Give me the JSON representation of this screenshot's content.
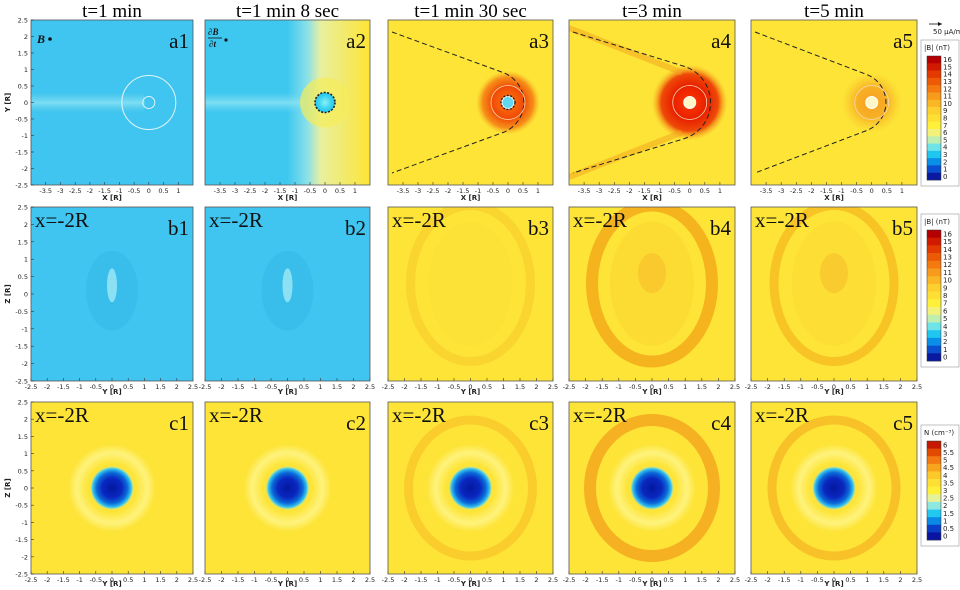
{
  "times": [
    "t=1 min",
    "t=1 min 8 sec",
    "t=1 min 30 sec",
    "t=3 min",
    "t=5 min"
  ],
  "panel_labels": {
    "a": [
      "a1",
      "a2",
      "a3",
      "a4",
      "a5"
    ],
    "b": [
      "b1",
      "b2",
      "b3",
      "b4",
      "b5"
    ],
    "c": [
      "c1",
      "c2",
      "c3",
      "c4",
      "c5"
    ]
  },
  "slice_label": "x=-2R",
  "a1_symbol": "B",
  "a2_symbol_num": "∂B",
  "a2_symbol_den": "∂t",
  "vector_scale": "50 μA/m²",
  "chart_data": [
    {
      "type": "heatmap",
      "row": "a",
      "xlabel": "X [R]",
      "ylabel": "Y [R]",
      "xlim": [
        -4,
        1.5
      ],
      "ylim": [
        -2.5,
        2.5
      ],
      "x_ticks": [
        "-3.5",
        "-3",
        "-2.5",
        "-2",
        "-1.5",
        "-1",
        "-0.5",
        "0",
        "0.5",
        "1"
      ],
      "y_ticks": [
        "2.5",
        "2",
        "1.5",
        "1",
        "0.5",
        "0",
        "-0.5",
        "-1",
        "-1.5",
        "-2",
        "-2.5"
      ],
      "colorbar": {
        "title": "|B| (nT)",
        "ticks": [
          "16",
          "15",
          "14",
          "13",
          "12",
          "11",
          "10",
          "9",
          "8",
          "7",
          "6",
          "5",
          "4",
          "3",
          "2",
          "1",
          "0"
        ],
        "colors": [
          "#b40000",
          "#d21a00",
          "#e23a00",
          "#ec5a05",
          "#f47a10",
          "#f89a1c",
          "#fbb626",
          "#fcd02e",
          "#fde033",
          "#fff03a",
          "#f2f27a",
          "#bfeeb0",
          "#6fe4e8",
          "#1fc6f0",
          "#0a8fe8",
          "#0a4fd0",
          "#0a1aa0"
        ]
      },
      "panels": [
        {
          "time": "t=1 min",
          "background": "light blue",
          "bow_shock": false
        },
        {
          "time": "t=1 min 8 sec",
          "background": "light blue to yellow",
          "bow_shock": false
        },
        {
          "time": "t=1 min 30 sec",
          "background": "yellow",
          "bow_shock": true
        },
        {
          "time": "t=3 min",
          "background": "yellow",
          "bow_shock": true
        },
        {
          "time": "t=5 min",
          "background": "yellow",
          "bow_shock": true
        }
      ]
    },
    {
      "type": "heatmap",
      "row": "b",
      "xlabel": "Y [R]",
      "ylabel": "Z [R]",
      "xlim": [
        -2.5,
        2.5
      ],
      "ylim": [
        -2.5,
        2.5
      ],
      "x_ticks": [
        "-2.5",
        "-2",
        "-1.5",
        "-1",
        "-0.5",
        "0",
        "0.5",
        "1",
        "1.5",
        "2",
        "2.5"
      ],
      "y_ticks": [
        "2.5",
        "2",
        "1.5",
        "1",
        "0.5",
        "0",
        "-0.5",
        "-1",
        "-1.5",
        "-2",
        "-2.5"
      ],
      "colorbar": {
        "title": "|B| (nT)",
        "ticks": [
          "16",
          "15",
          "14",
          "13",
          "12",
          "11",
          "10",
          "9",
          "8",
          "7",
          "6",
          "5",
          "4",
          "3",
          "2",
          "1",
          "0"
        ],
        "colors": [
          "#b40000",
          "#d21a00",
          "#e23a00",
          "#ec5a05",
          "#f47a10",
          "#f89a1c",
          "#fbb626",
          "#fcd02e",
          "#fde033",
          "#fff03a",
          "#f2f27a",
          "#bfeeb0",
          "#6fe4e8",
          "#1fc6f0",
          "#0a8fe8",
          "#0a4fd0",
          "#0a1aa0"
        ]
      }
    },
    {
      "type": "heatmap",
      "row": "c",
      "xlabel": "Y [R]",
      "ylabel": "Z [R]",
      "xlim": [
        -2.5,
        2.5
      ],
      "ylim": [
        -2.5,
        2.5
      ],
      "x_ticks": [
        "-2.5",
        "-2",
        "-1.5",
        "-1",
        "-0.5",
        "0",
        "0.5",
        "1",
        "1.5",
        "2",
        "2.5"
      ],
      "y_ticks": [
        "2.5",
        "2",
        "1.5",
        "1",
        "0.5",
        "0",
        "-0.5",
        "-1",
        "-1.5",
        "-2",
        "-2.5"
      ],
      "colorbar": {
        "title": "N (cm⁻³)",
        "ticks": [
          "6",
          "5.5",
          "5",
          "4.5",
          "4",
          "3.5",
          "3",
          "2.5",
          "2",
          "1.5",
          "1",
          "0.5",
          "0"
        ],
        "colors": [
          "#c41a00",
          "#e24a00",
          "#f27a10",
          "#f9a41e",
          "#fcc82a",
          "#fde033",
          "#fff03a",
          "#e6f29a",
          "#8fe8e0",
          "#22c8f0",
          "#0a8ae6",
          "#0a40c8",
          "#0a14a0"
        ]
      }
    }
  ]
}
